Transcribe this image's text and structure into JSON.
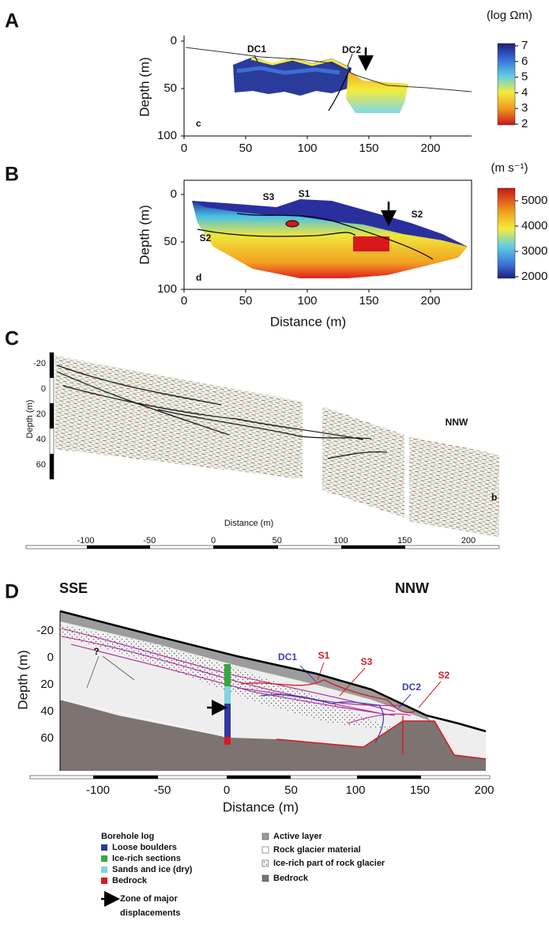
{
  "panels": [
    {
      "label": "A",
      "colorbar": {
        "title": "(log Ωm)",
        "ticks": [
          7,
          6,
          5,
          4,
          3,
          2
        ]
      },
      "y_axis_label": "Depth (m)",
      "yticks": [
        0,
        50,
        100
      ],
      "xticks": [
        0,
        50,
        100,
        150,
        200
      ],
      "annotations": [
        "DC1",
        "DC2",
        "c"
      ]
    },
    {
      "label": "B",
      "colorbar": {
        "title": "(m s⁻¹)",
        "ticks": [
          5000,
          4000,
          3000,
          2000
        ]
      },
      "y_axis_label": "Depth (m)",
      "x_axis_label": "Distance (m)",
      "yticks": [
        0,
        50,
        100
      ],
      "xticks": [
        0,
        50,
        100,
        150,
        200
      ],
      "annotations": [
        "S3",
        "S1",
        "S2",
        "S2",
        "d"
      ]
    },
    {
      "label": "C",
      "y_axis_label": "Depth (m)",
      "x_axis_label": "Distance (m)",
      "yticks": [
        -20,
        0,
        20,
        40,
        60
      ],
      "xticks": [
        -100,
        -50,
        0,
        50,
        100,
        150,
        200
      ],
      "annotations": [
        "NNW",
        "b"
      ]
    },
    {
      "label": "D",
      "y_axis_label": "Depth (m)",
      "x_axis_label": "Distance (m)",
      "yticks": [
        -20,
        0,
        20,
        40,
        60
      ],
      "xticks": [
        -100,
        -50,
        0,
        50,
        100,
        150,
        200
      ],
      "annotations": [
        "SSE",
        "NNW",
        "?",
        "DC1",
        "S1",
        "S3",
        "DC2",
        "S2"
      ]
    }
  ],
  "legend": {
    "borehole_title": "Borehole log",
    "borehole_items": [
      "Loose boulders",
      "Ice-rich sections",
      "Sands and ice (dry)",
      "Bedrock"
    ],
    "arrow_item": [
      "Zone of major",
      "displacements"
    ],
    "unit_items": [
      "Active layer",
      "Rock glacier material",
      "Ice-rich part of rock glacier",
      "Bedrock"
    ]
  }
}
